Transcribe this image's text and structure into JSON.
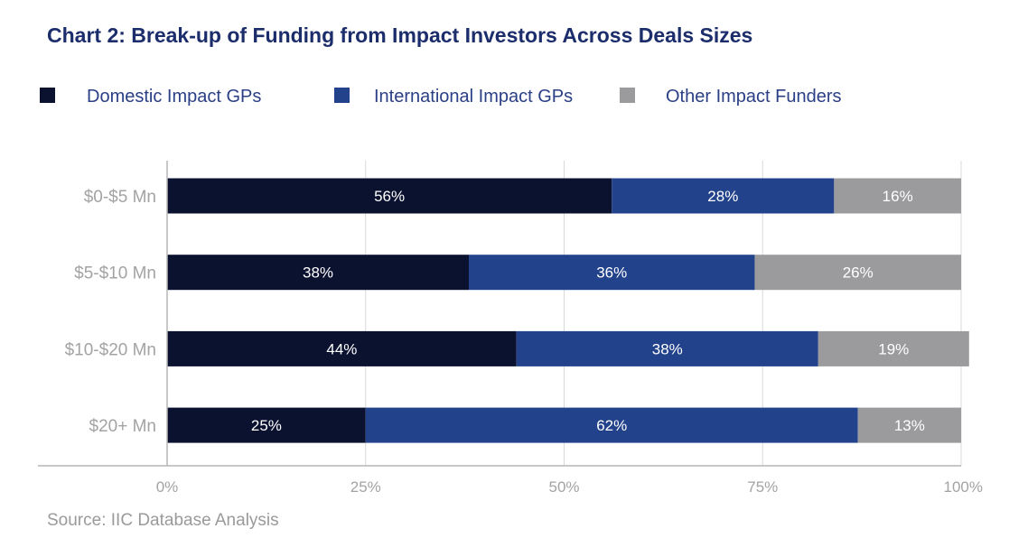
{
  "chart_data": {
    "type": "bar",
    "orientation": "horizontal",
    "stacked": true,
    "title": "Chart 2: Break-up of Funding from Impact Investors Across Deals Sizes",
    "categories": [
      "$0-$5 Mn",
      "$5-$10 Mn",
      "$10-$20 Mn",
      "$20+ Mn"
    ],
    "series": [
      {
        "name": "Domestic Impact GPs",
        "values": [
          56,
          38,
          44,
          25
        ],
        "labels": [
          "56%",
          "38%",
          "44%",
          "25%"
        ],
        "color": "#0b1230"
      },
      {
        "name": "International Impact GPs",
        "values": [
          28,
          36,
          38,
          62
        ],
        "labels": [
          "28%",
          "36%",
          "38%",
          "62%"
        ],
        "color": "#22428c"
      },
      {
        "name": "Other Impact Funders",
        "values": [
          16,
          26,
          19,
          13
        ],
        "labels": [
          "16%",
          "26%",
          "19%",
          "13%"
        ],
        "color": "#9b9b9e"
      }
    ],
    "xlim": [
      0,
      100
    ],
    "xticks": [
      0,
      25,
      50,
      75,
      100
    ],
    "xtick_labels": [
      "0%",
      "25%",
      "50%",
      "75%",
      "100%"
    ],
    "xlabel": "",
    "ylabel": "",
    "grid": "vertical",
    "legend_position": "top"
  },
  "source": "Source: IIC Database Analysis",
  "colors": {
    "title": "#1b2d6b",
    "legend_text": "#2a3f86",
    "axis_text": "#a3a3a3",
    "grid": "#d9d9d9",
    "label_on_bar": "#ffffff"
  }
}
